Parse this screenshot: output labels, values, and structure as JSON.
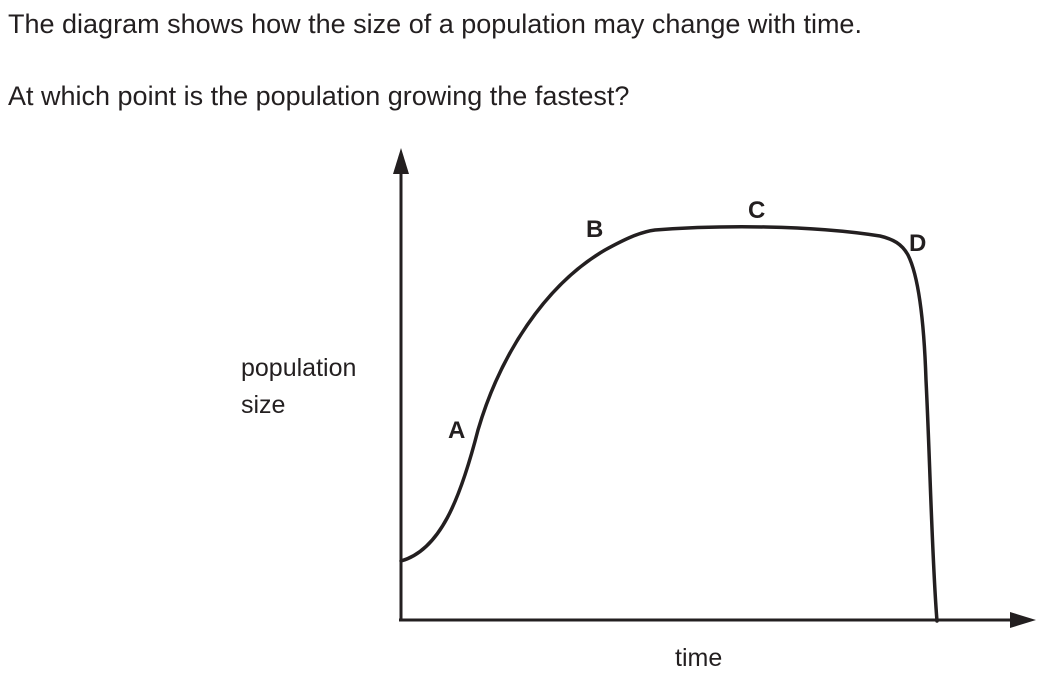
{
  "question": {
    "intro": "The diagram shows how the size of a population may change with time.",
    "ask": "At which point is the population growing the fastest?"
  },
  "diagram": {
    "y_axis_label_line1": "population",
    "y_axis_label_line2": "size",
    "x_axis_label": "time",
    "points": [
      "A",
      "B",
      "C",
      "D"
    ]
  },
  "colors": {
    "ink": "#231f20",
    "background": "#ffffff"
  }
}
